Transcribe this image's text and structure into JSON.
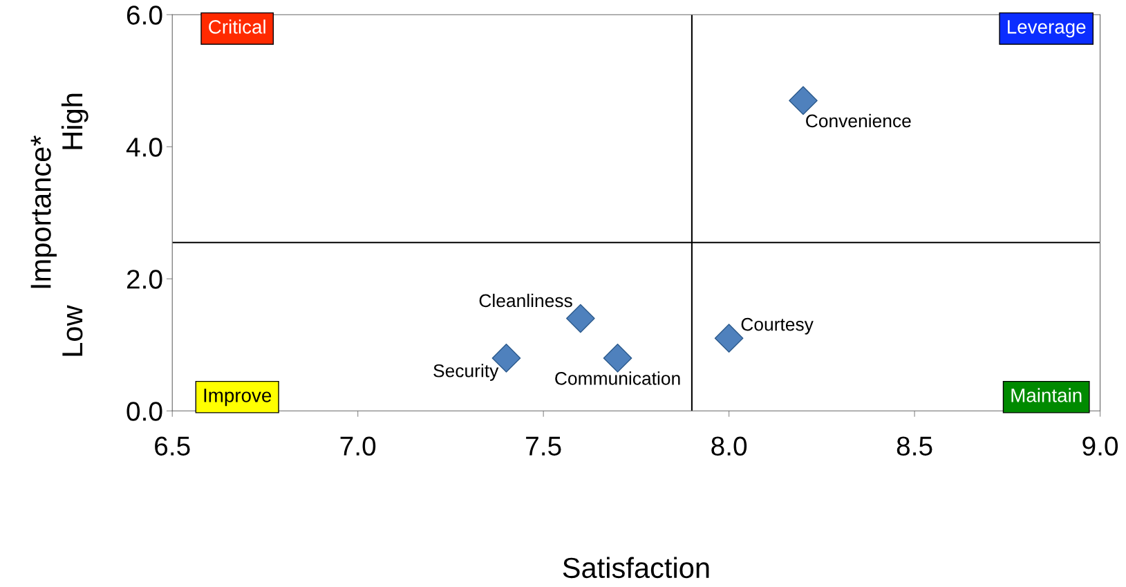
{
  "chart_data": {
    "type": "scatter",
    "xlabel": "Satisfaction",
    "ylabel": "Importance*",
    "series": [
      {
        "name": "Security",
        "color": "#4f81bd",
        "x": [
          7.4
        ],
        "values": [
          0.8
        ]
      },
      {
        "name": "Cleanliness",
        "color": "#4f81bd",
        "x": [
          7.6
        ],
        "values": [
          1.4
        ]
      },
      {
        "name": "Communication",
        "color": "#4f81bd",
        "x": [
          7.7
        ],
        "values": [
          0.8
        ]
      },
      {
        "name": "Courtesy",
        "color": "#4f81bd",
        "x": [
          8.0
        ],
        "values": [
          1.1
        ]
      },
      {
        "name": "Convenience",
        "color": "#4f81bd",
        "x": [
          8.2
        ],
        "values": [
          4.7
        ]
      }
    ],
    "marker": "diamond",
    "xlim": [
      6.5,
      9.0
    ],
    "ylim": [
      0,
      6.0
    ],
    "xticks": [
      {
        "value": 6.5,
        "label": "6.5"
      },
      {
        "value": 7.0,
        "label": "7.0"
      },
      {
        "value": 7.5,
        "label": "7.5"
      },
      {
        "value": 8.0,
        "label": "8.0"
      },
      {
        "value": 8.5,
        "label": "8.5"
      },
      {
        "value": 9.0,
        "label": "9.0"
      }
    ],
    "yticks": [
      {
        "value": 0,
        "label": "0.0"
      },
      {
        "value": 2,
        "label": "2.0"
      },
      {
        "value": 4,
        "label": "4.0"
      },
      {
        "value": 6,
        "label": "6.0"
      }
    ],
    "ref_lines": [
      {
        "axis": "x",
        "value": 7.9,
        "color": "#000000"
      },
      {
        "axis": "y",
        "value": 2.55,
        "color": "#000000"
      }
    ],
    "annotations": [
      "Critical",
      "Leverage",
      "Improve",
      "Maintain",
      "High",
      "Low"
    ],
    "grid": false,
    "legend": false
  }
}
